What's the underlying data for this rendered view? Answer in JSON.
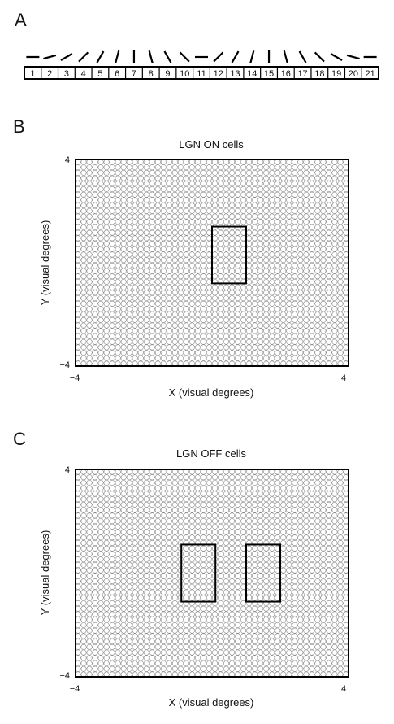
{
  "panel_a": {
    "letter": "A",
    "cells": [
      "1",
      "2",
      "3",
      "4",
      "5",
      "6",
      "7",
      "8",
      "9",
      "10",
      "11",
      "12",
      "13",
      "14",
      "15",
      "16",
      "17",
      "18",
      "19",
      "20",
      "21"
    ],
    "orientations_deg": [
      0,
      -15,
      -30,
      -45,
      -60,
      -75,
      -90,
      -105,
      -120,
      -135,
      -180,
      -45,
      -60,
      -75,
      -90,
      -105,
      -120,
      -135,
      -150,
      -165,
      -180
    ]
  },
  "panel_b": {
    "letter": "B",
    "title": "LGN ON cells",
    "xlabel": "X (visual degrees)",
    "ylabel": "Y (visual degrees)",
    "x_ticks": [
      "−4",
      "4"
    ],
    "y_ticks": [
      "4",
      "−4"
    ],
    "xlim": [
      -4,
      4
    ],
    "ylim": [
      -4,
      4
    ],
    "rectangles": [
      {
        "x0": 0.0,
        "x1": 1.0,
        "y0": -0.8,
        "y1": 1.4
      }
    ]
  },
  "panel_c": {
    "letter": "C",
    "title": "LGN OFF cells",
    "xlabel": "X (visual degrees)",
    "ylabel": "Y (visual degrees)",
    "x_ticks": [
      "−4",
      "4"
    ],
    "y_ticks": [
      "4",
      "−4"
    ],
    "xlim": [
      -4,
      4
    ],
    "ylim": [
      -4,
      4
    ],
    "rectangles": [
      {
        "x0": -0.9,
        "x1": 0.1,
        "y0": -1.1,
        "y1": 1.1
      },
      {
        "x0": 1.0,
        "x1": 2.0,
        "y0": -1.1,
        "y1": 1.1
      }
    ]
  },
  "colors": {
    "grid_circle": "#8a8a8a",
    "frame": "#000000"
  }
}
